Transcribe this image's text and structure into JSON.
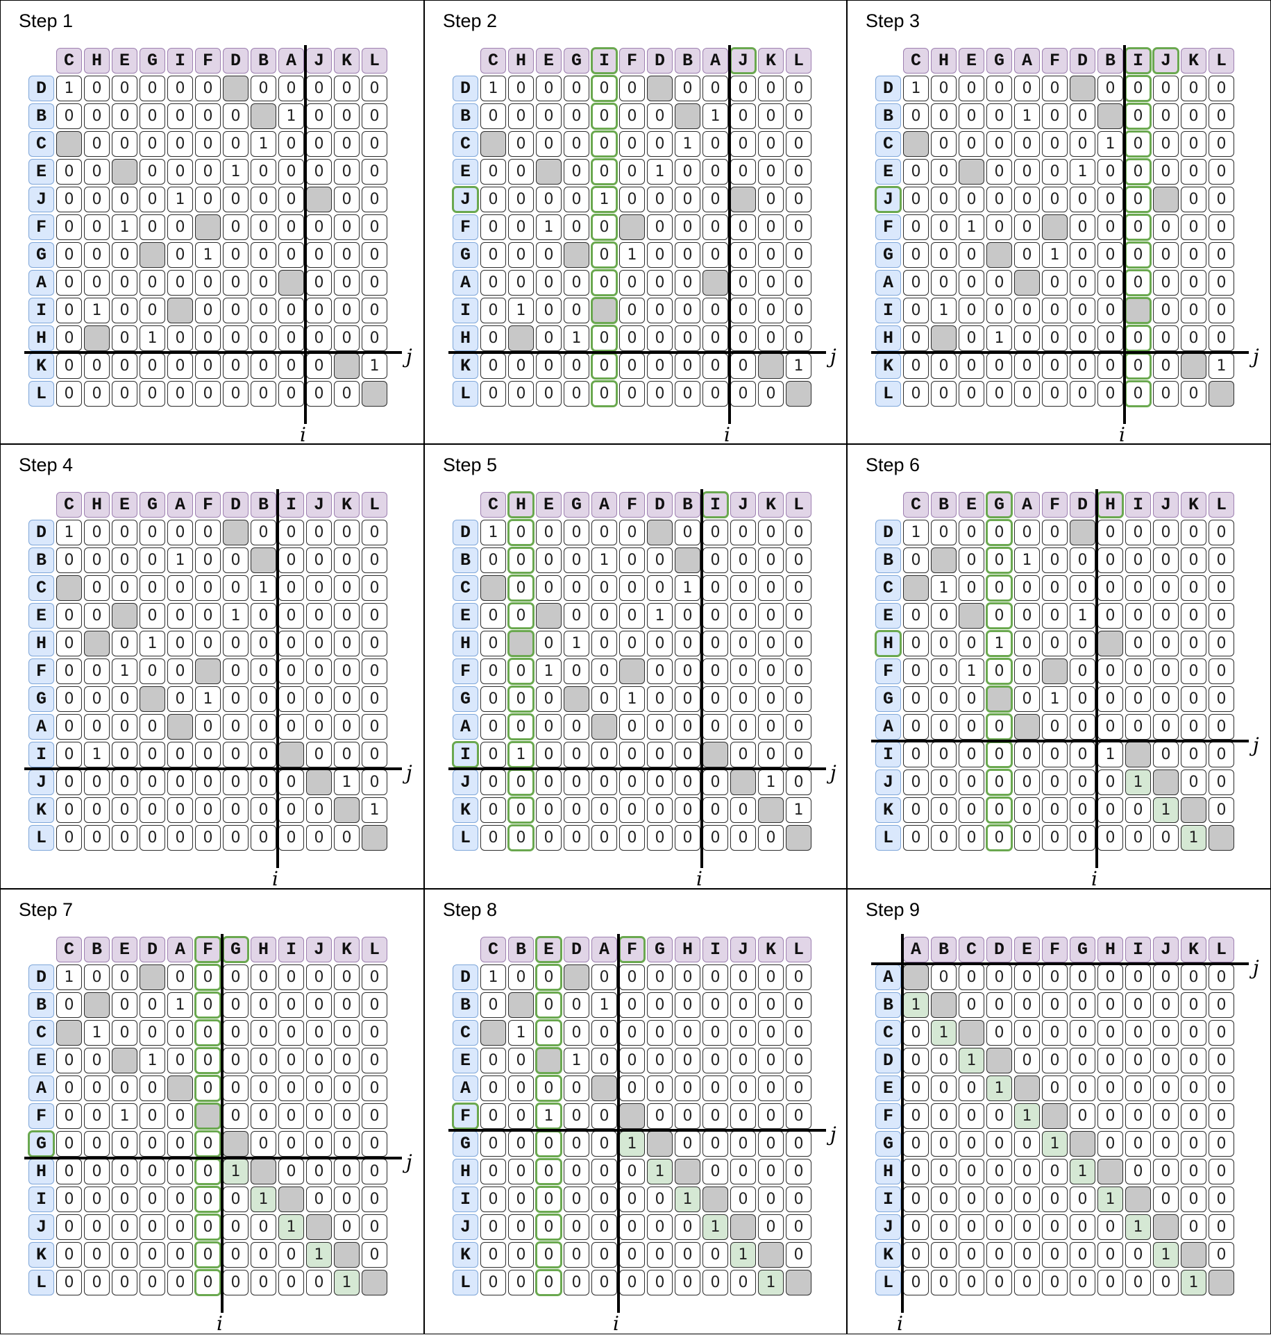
{
  "steps": [
    {
      "title": "Step 1",
      "cols": [
        "C",
        "H",
        "E",
        "G",
        "I",
        "F",
        "D",
        "B",
        "A",
        "J",
        "K",
        "L"
      ],
      "rows": [
        "D",
        "B",
        "C",
        "E",
        "J",
        "F",
        "G",
        "A",
        "I",
        "H",
        "K",
        "L"
      ],
      "matrix": [
        "100000 00000",
        "0000000 1000",
        " 0000001 000",
        "00 00010 000",
        "00001 0000 00",
        "001 00 00000",
        "000 01 00000",
        "000000000 000",
        "0100 0000000",
        "0 01 0000000",
        "0000000000 1 0",
        "00000000000 1 "
      ],
      "axis_i": "i",
      "axis_j": "j",
      "hl_cols": [],
      "hl_rows": [],
      "hl_col_headers": [],
      "hl_row_headers": []
    },
    {
      "title": "Step 2",
      "cols": [
        "C",
        "H",
        "E",
        "G",
        "I",
        "F",
        "D",
        "B",
        "A",
        "J",
        "K",
        "L"
      ],
      "rows": [
        "D",
        "B",
        "C",
        "E",
        "J",
        "F",
        "G",
        "A",
        "I",
        "H",
        "K",
        "L"
      ],
      "matrix": [
        "100000 00000",
        "0000000 1000",
        " 0000001 000",
        "00 00010 000",
        "00001 0000 00",
        "001 00 00000",
        "000 01 00000",
        "000000000 000",
        "0100 0000000",
        "0 01 0000000",
        "0000000000 1 0",
        "00000000000 1 "
      ],
      "axis_i": "i",
      "axis_j": "j",
      "hl_cols": [
        4
      ],
      "hl_rows": [],
      "hl_col_headers": [
        4,
        9
      ],
      "hl_row_headers": [
        4
      ]
    },
    {
      "title": "Step 3",
      "cols": [
        "C",
        "H",
        "E",
        "G",
        "A",
        "F",
        "D",
        "B",
        "I",
        "J",
        "K",
        "L"
      ],
      "rows": [
        "D",
        "B",
        "C",
        "E",
        "J",
        "F",
        "G",
        "A",
        "I",
        "H",
        "K",
        "L"
      ],
      "matrix": [
        "100000 00000",
        "000010 0 0000",
        " 0000001 0000",
        "00 00010 0000",
        "0000000001 00",
        "001 00 000000",
        "000 01 000000",
        "0000 000 0000",
        "01000000 000",
        "0 01000000000",
        "000000000 01 0",
        "0000000000 01 "
      ],
      "axis_i": "i",
      "axis_j": "j",
      "hl_cols": [
        8
      ],
      "hl_rows": [],
      "hl_col_headers": [
        8,
        9
      ],
      "hl_row_headers": [
        4
      ]
    },
    {
      "title": "Step 4",
      "cols": [
        "C",
        "H",
        "E",
        "G",
        "A",
        "F",
        "D",
        "B",
        "I",
        "J",
        "K",
        "L"
      ],
      "rows": [
        "D",
        "B",
        "C",
        "E",
        "H",
        "F",
        "G",
        "A",
        "I",
        "J",
        "K",
        "L"
      ],
      "matrix": [
        "100000 00000",
        "000010 0 0000",
        " 0000001 0000",
        "00 00010 0000",
        "0 010000 0000",
        "001 00 000000",
        "000 01 000000",
        "0000 000 0000",
        "01000000000 000",
        "000000000 1 00",
        "0000000000 1 0",
        "00000000000 1 "
      ],
      "axis_i": "i",
      "axis_j": "j",
      "hl_cols": [],
      "hl_rows": [],
      "hl_col_headers": [],
      "hl_row_headers": []
    },
    {
      "title": "Step 5",
      "cols": [
        "C",
        "H",
        "E",
        "G",
        "A",
        "F",
        "D",
        "B",
        "I",
        "J",
        "K",
        "L"
      ],
      "rows": [
        "D",
        "B",
        "C",
        "E",
        "H",
        "F",
        "G",
        "A",
        "I",
        "J",
        "K",
        "L"
      ],
      "matrix": [
        "100000 00000",
        "000010 0 0000",
        " 0000001 0000",
        "00 00010 0000",
        "0 010000 0000",
        "001 00 000000",
        "000 01 000000",
        "0000 000 0000",
        "01000000 000",
        "000000000 1 00",
        "0000000000 1 0",
        "00000000000 1 "
      ],
      "axis_i": "i",
      "axis_j": "j",
      "hl_cols": [
        1
      ],
      "hl_rows": [],
      "hl_col_headers": [
        1,
        8
      ],
      "hl_row_headers": [
        8
      ]
    },
    {
      "title": "Step 6",
      "cols": [
        "C",
        "B",
        "E",
        "G",
        "A",
        "F",
        "D",
        "H",
        "I",
        "J",
        "K",
        "L"
      ],
      "rows": [
        "D",
        "B",
        "C",
        "E",
        "H",
        "F",
        "G",
        "A",
        "I",
        "J",
        "K",
        "L"
      ],
      "matrix": [
        "100000 00000",
        "0 00100 00000",
        " 10000000000",
        "00 00010 0000",
        "000100 00000",
        "001 00 000000",
        "000 01 000000",
        "0000 00000000",
        "00000001 000",
        "000000001 00",
        "0000000001 0",
        "00000000001 "
      ],
      "axis_i": "i",
      "axis_j": "j",
      "hl_cols": [
        3
      ],
      "hl_rows": [],
      "hl_col_headers": [
        3,
        7
      ],
      "hl_row_headers": [
        4
      ]
    },
    {
      "title": "Step 7",
      "cols": [
        "C",
        "B",
        "E",
        "D",
        "A",
        "F",
        "G",
        "H",
        "I",
        "J",
        "K",
        "L"
      ],
      "rows": [
        "D",
        "B",
        "C",
        "E",
        "A",
        "F",
        "G",
        "H",
        "I",
        "J",
        "K",
        "L"
      ],
      "matrix": [
        "100 00000000",
        "0 001000000000",
        " 1000000000000",
        "00 10000000000",
        "0000 00000000",
        "00100 000000",
        "0000001 00000",
        "0000001 0000",
        "00000001 000",
        "000000001 00",
        "0000000001 0",
        "00000000001 "
      ],
      "axis_i": "i",
      "axis_j": "j",
      "hl_cols": [
        5
      ],
      "hl_rows": [],
      "hl_col_headers": [
        5,
        6
      ],
      "hl_row_headers": [
        6
      ]
    },
    {
      "title": "Step 8",
      "cols": [
        "C",
        "B",
        "E",
        "D",
        "A",
        "F",
        "G",
        "H",
        "I",
        "J",
        "K",
        "L"
      ],
      "rows": [
        "D",
        "B",
        "C",
        "E",
        "A",
        "F",
        "G",
        "H",
        "I",
        "J",
        "K",
        "L"
      ],
      "matrix": [
        "100 00000000",
        "0 001000000000",
        " 1000000000000",
        "00 10000000000",
        "0000 0000000",
        "001 00 000000",
        "000001 00000",
        "0000001 0000",
        "00000001 000",
        "000000001 00",
        "0000000001 0",
        "00000000001 "
      ],
      "axis_i": "i",
      "axis_j": "j",
      "hl_cols": [
        2
      ],
      "hl_rows": [],
      "hl_col_headers": [
        2,
        5
      ],
      "hl_row_headers": [
        5
      ]
    },
    {
      "title": "Step 9",
      "cols": [
        "A",
        "B",
        "C",
        "D",
        "E",
        "F",
        "G",
        "H",
        "I",
        "J",
        "K",
        "L"
      ],
      "rows": [
        "A",
        "B",
        "C",
        "D",
        "E",
        "F",
        "G",
        "H",
        "I",
        "J",
        "K",
        "L"
      ],
      "matrix": [
        " 00000000000",
        "1 0000000000",
        "01 000000000",
        "001 00000000",
        "0001 0000000",
        "00001 000000",
        "000001 00000",
        "0000001 0000",
        "00000001 000",
        "000000001 00",
        "0000000001 0",
        "00000000001 "
      ],
      "axis_i": "i",
      "axis_j": "j",
      "hl_cols": [],
      "hl_rows": [],
      "hl_col_headers": [],
      "hl_row_headers": []
    }
  ]
}
